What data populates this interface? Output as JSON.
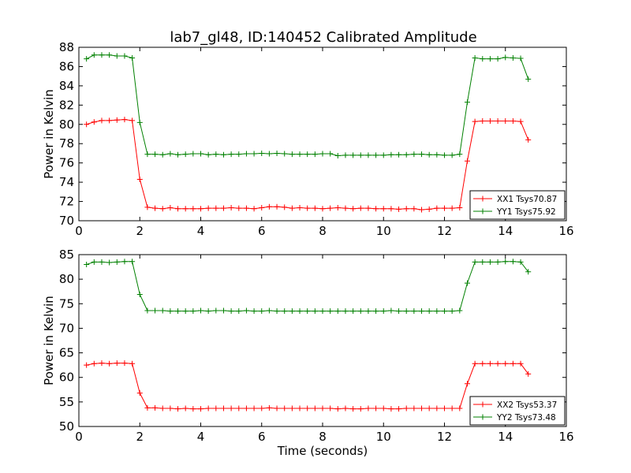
{
  "chart_data": {
    "type": "line",
    "title": "lab7_gl48, ID:140452 Calibrated Amplitude",
    "colors": {
      "xx": "#ff0000",
      "yy": "#008000"
    },
    "x": [
      0.25,
      0.5,
      0.75,
      1.0,
      1.25,
      1.5,
      1.75,
      2.0,
      2.25,
      2.5,
      2.75,
      3.0,
      3.25,
      3.5,
      3.75,
      4.0,
      4.25,
      4.5,
      4.75,
      5.0,
      5.25,
      5.5,
      5.75,
      6.0,
      6.25,
      6.5,
      6.75,
      7.0,
      7.25,
      7.5,
      7.75,
      8.0,
      8.25,
      8.5,
      8.75,
      9.0,
      9.25,
      9.5,
      9.75,
      10.0,
      10.25,
      10.5,
      10.75,
      11.0,
      11.25,
      11.5,
      11.75,
      12.0,
      12.25,
      12.5,
      12.75,
      13.0,
      13.25,
      13.5,
      13.75,
      14.0,
      14.25,
      14.5,
      14.75
    ],
    "panels": [
      {
        "xlabel": "",
        "ylabel": "Power in Kelvin",
        "xlim": [
          0,
          16
        ],
        "ylim": [
          70,
          88
        ],
        "xticks": [
          0,
          2,
          4,
          6,
          8,
          10,
          12,
          14,
          16
        ],
        "yticks": [
          70,
          72,
          74,
          76,
          78,
          80,
          82,
          84,
          86,
          88
        ],
        "series": [
          {
            "name": "XX1 Tsys70.87",
            "color": "#ff0000",
            "values": [
              80.0,
              80.25,
              80.4,
              80.4,
              80.45,
              80.5,
              80.4,
              74.3,
              71.4,
              71.3,
              71.25,
              71.35,
              71.25,
              71.25,
              71.25,
              71.25,
              71.3,
              71.3,
              71.3,
              71.35,
              71.3,
              71.3,
              71.25,
              71.35,
              71.45,
              71.45,
              71.4,
              71.3,
              71.35,
              71.3,
              71.3,
              71.25,
              71.3,
              71.35,
              71.3,
              71.25,
              71.3,
              71.3,
              71.25,
              71.25,
              71.25,
              71.2,
              71.25,
              71.25,
              71.15,
              71.2,
              71.3,
              71.3,
              71.3,
              71.35,
              76.2,
              80.3,
              80.35,
              80.35,
              80.35,
              80.35,
              80.35,
              80.3,
              78.4
            ]
          },
          {
            "name": "YY1 Tsys75.92",
            "color": "#008000",
            "values": [
              86.8,
              87.2,
              87.2,
              87.2,
              87.1,
              87.1,
              86.9,
              80.2,
              76.9,
              76.9,
              76.85,
              76.95,
              76.85,
              76.9,
              76.95,
              76.95,
              76.85,
              76.9,
              76.85,
              76.9,
              76.9,
              76.95,
              76.95,
              77.0,
              76.95,
              77.0,
              76.95,
              76.9,
              76.9,
              76.9,
              76.9,
              76.95,
              76.95,
              76.75,
              76.8,
              76.8,
              76.8,
              76.8,
              76.8,
              76.8,
              76.85,
              76.85,
              76.85,
              76.9,
              76.9,
              76.85,
              76.85,
              76.8,
              76.8,
              76.9,
              82.3,
              86.9,
              86.8,
              86.8,
              86.8,
              86.95,
              86.9,
              86.85,
              84.7
            ]
          }
        ]
      },
      {
        "xlabel": "Time (seconds)",
        "ylabel": "Power in Kelvin",
        "xlim": [
          0,
          16
        ],
        "ylim": [
          50,
          85
        ],
        "xticks": [
          0,
          2,
          4,
          6,
          8,
          10,
          12,
          14,
          16
        ],
        "yticks": [
          50,
          55,
          60,
          65,
          70,
          75,
          80,
          85
        ],
        "series": [
          {
            "name": "XX2 Tsys53.37",
            "color": "#ff0000",
            "values": [
              62.5,
              62.8,
              62.9,
              62.8,
              62.9,
              62.9,
              62.8,
              56.8,
              53.8,
              53.8,
              53.7,
              53.7,
              53.6,
              53.7,
              53.6,
              53.6,
              53.7,
              53.7,
              53.7,
              53.7,
              53.7,
              53.7,
              53.7,
              53.7,
              53.8,
              53.7,
              53.7,
              53.7,
              53.7,
              53.7,
              53.7,
              53.7,
              53.7,
              53.6,
              53.7,
              53.6,
              53.6,
              53.7,
              53.7,
              53.7,
              53.6,
              53.6,
              53.7,
              53.7,
              53.7,
              53.7,
              53.7,
              53.7,
              53.7,
              53.7,
              58.7,
              62.8,
              62.8,
              62.8,
              62.8,
              62.8,
              62.8,
              62.8,
              60.7
            ]
          },
          {
            "name": "YY2 Tsys73.48",
            "color": "#008000",
            "values": [
              83.0,
              83.5,
              83.5,
              83.4,
              83.5,
              83.6,
              83.6,
              76.9,
              73.6,
              73.6,
              73.6,
              73.5,
              73.5,
              73.5,
              73.5,
              73.6,
              73.5,
              73.6,
              73.6,
              73.5,
              73.5,
              73.6,
              73.5,
              73.5,
              73.6,
              73.5,
              73.5,
              73.5,
              73.5,
              73.5,
              73.5,
              73.5,
              73.5,
              73.5,
              73.5,
              73.5,
              73.5,
              73.5,
              73.5,
              73.5,
              73.6,
              73.5,
              73.5,
              73.5,
              73.5,
              73.5,
              73.5,
              73.5,
              73.5,
              73.6,
              79.2,
              83.5,
              83.5,
              83.5,
              83.5,
              83.6,
              83.6,
              83.5,
              81.5
            ]
          }
        ]
      }
    ]
  }
}
